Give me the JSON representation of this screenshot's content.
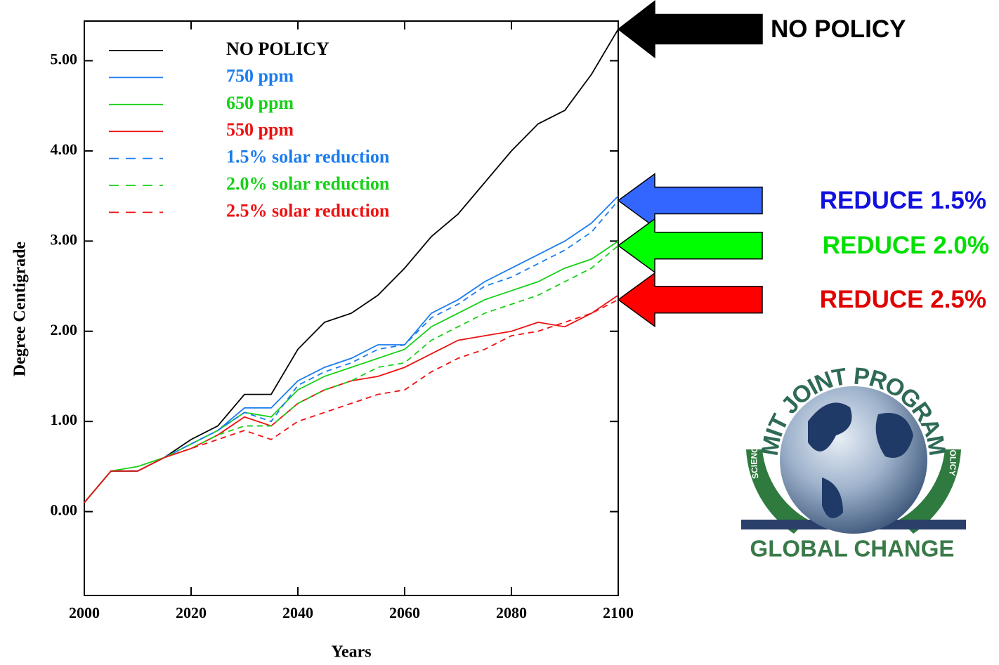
{
  "chart_data": {
    "type": "line",
    "x_label": "Years",
    "y_label": "Degree Centigrade",
    "x": [
      2000,
      2005,
      2010,
      2015,
      2020,
      2025,
      2030,
      2035,
      2040,
      2045,
      2050,
      2055,
      2060,
      2065,
      2070,
      2075,
      2080,
      2085,
      2090,
      2095,
      2100
    ],
    "xlim": [
      2000,
      2100
    ],
    "xticks": [
      2000,
      2020,
      2040,
      2060,
      2080,
      2100
    ],
    "ylim": [
      -0.93,
      5.44
    ],
    "yticks": [
      {
        "value": 0,
        "label": "0.00"
      },
      {
        "value": 1,
        "label": "1.00"
      },
      {
        "value": 2,
        "label": "2.00"
      },
      {
        "value": 3,
        "label": "3.00"
      },
      {
        "value": 4,
        "label": "4.00"
      },
      {
        "value": 5,
        "label": "5.00"
      }
    ],
    "series": [
      {
        "name": "NO POLICY",
        "color": "#000000",
        "linestyle": "solid",
        "values": [
          0.1,
          0.45,
          0.45,
          0.6,
          0.8,
          0.95,
          1.3,
          1.3,
          1.8,
          2.1,
          2.2,
          2.4,
          2.7,
          3.05,
          3.3,
          3.65,
          4.0,
          4.3,
          4.45,
          4.85,
          5.35
        ]
      },
      {
        "name": "750 ppm",
        "color": "#1a7cf0",
        "linestyle": "solid",
        "values": [
          0.1,
          0.45,
          0.45,
          0.6,
          0.75,
          0.9,
          1.15,
          1.15,
          1.45,
          1.6,
          1.7,
          1.85,
          1.85,
          2.2,
          2.35,
          2.55,
          2.7,
          2.85,
          3.0,
          3.2,
          3.5
        ]
      },
      {
        "name": "650 ppm",
        "color": "#18d018",
        "linestyle": "solid",
        "values": [
          0.1,
          0.45,
          0.5,
          0.6,
          0.75,
          0.9,
          1.1,
          1.05,
          1.35,
          1.5,
          1.6,
          1.7,
          1.8,
          2.05,
          2.2,
          2.35,
          2.45,
          2.55,
          2.7,
          2.8,
          3.0
        ]
      },
      {
        "name": "550 ppm",
        "color": "#ee1111",
        "linestyle": "solid",
        "values": [
          0.1,
          0.45,
          0.45,
          0.6,
          0.7,
          0.85,
          1.05,
          0.95,
          1.2,
          1.35,
          1.45,
          1.5,
          1.6,
          1.75,
          1.9,
          1.95,
          2.0,
          2.1,
          2.05,
          2.2,
          2.4
        ]
      },
      {
        "name": "1.5% solar reduction",
        "color": "#1a7cf0",
        "linestyle": "dashed",
        "values": [
          0.1,
          0.45,
          0.45,
          0.6,
          0.75,
          0.9,
          1.1,
          1.0,
          1.4,
          1.55,
          1.65,
          1.8,
          1.85,
          2.15,
          2.3,
          2.5,
          2.6,
          2.75,
          2.9,
          3.1,
          3.45
        ]
      },
      {
        "name": "2.0% solar reduction",
        "color": "#18d018",
        "linestyle": "dashed",
        "values": [
          0.1,
          0.45,
          0.45,
          0.6,
          0.7,
          0.85,
          0.95,
          0.95,
          1.2,
          1.35,
          1.45,
          1.6,
          1.65,
          1.9,
          2.05,
          2.2,
          2.3,
          2.4,
          2.55,
          2.7,
          2.95
        ]
      },
      {
        "name": "2.5% solar reduction",
        "color": "#ee1111",
        "linestyle": "dashed",
        "values": [
          0.1,
          0.45,
          0.45,
          0.6,
          0.7,
          0.8,
          0.9,
          0.8,
          1.0,
          1.1,
          1.2,
          1.3,
          1.35,
          1.55,
          1.7,
          1.8,
          1.95,
          2.0,
          2.1,
          2.2,
          2.35
        ]
      }
    ]
  },
  "annotations": [
    {
      "text": "NO POLICY",
      "color": "#000000",
      "text_color": "#000000"
    },
    {
      "text": "REDUCE 1.5%",
      "color": "#3366ff",
      "text_color": "#1010e0"
    },
    {
      "text": "REDUCE 2.0%",
      "color": "#00ff00",
      "text_color": "#00e000"
    },
    {
      "text": "REDUCE 2.5%",
      "color": "#ff0000",
      "text_color": "#e00000"
    }
  ],
  "logo": {
    "arc_text": "MIT JOINT PROGRAM",
    "left_text": "SCIENCE",
    "right_text": "POLICY",
    "bottom_text": "GLOBAL CHANGE"
  }
}
